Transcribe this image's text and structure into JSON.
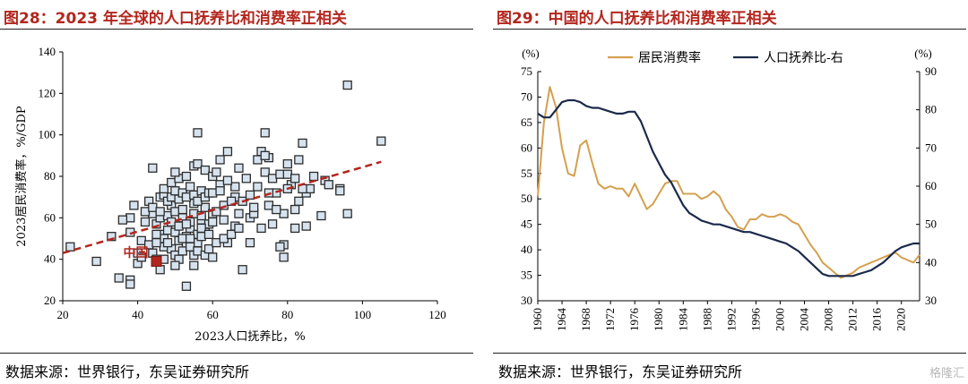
{
  "left": {
    "title": "图28：2023 年全球的人口抚养比和消费率正相关",
    "source": "数据来源：世界银行，东吴证券研究所"
  },
  "right": {
    "title": "图29：中国的人口抚养比和消费率正相关",
    "source": "数据来源：世界银行，东吴证券研究所"
  },
  "watermark": "格隆汇",
  "chart_data": [
    {
      "type": "scatter",
      "xlabel": "2023人口抚养比，%",
      "ylabel": "2023居民消费率，%/GDP",
      "xlim": [
        20,
        120
      ],
      "ylim": [
        20,
        140
      ],
      "xticks": [
        20,
        40,
        60,
        80,
        100,
        120
      ],
      "yticks": [
        20,
        40,
        60,
        80,
        100,
        120,
        140
      ],
      "trendline": {
        "x": [
          20,
          105
        ],
        "y": [
          43,
          87
        ],
        "style": "dashed",
        "color": "#b3261e"
      },
      "highlight": {
        "label": "中国",
        "x": 45,
        "y": 39,
        "color": "#b3261e"
      },
      "points": [
        [
          22,
          46
        ],
        [
          29,
          39
        ],
        [
          33,
          51
        ],
        [
          38,
          30
        ],
        [
          38,
          28
        ],
        [
          35,
          31
        ],
        [
          40,
          38
        ],
        [
          38,
          53
        ],
        [
          41,
          49
        ],
        [
          42,
          58
        ],
        [
          44,
          62
        ],
        [
          45,
          57
        ],
        [
          46,
          60
        ],
        [
          46,
          52
        ],
        [
          47,
          50
        ],
        [
          47,
          46
        ],
        [
          48,
          54
        ],
        [
          48,
          61
        ],
        [
          49,
          58
        ],
        [
          49,
          66
        ],
        [
          50,
          63
        ],
        [
          50,
          53
        ],
        [
          51,
          49
        ],
        [
          51,
          56
        ],
        [
          52,
          60
        ],
        [
          52,
          64
        ],
        [
          53,
          51
        ],
        [
          53,
          47
        ],
        [
          54,
          55
        ],
        [
          54,
          58
        ],
        [
          55,
          62
        ],
        [
          55,
          67
        ],
        [
          56,
          52
        ],
        [
          56,
          48
        ],
        [
          57,
          59
        ],
        [
          57,
          61
        ],
        [
          58,
          65
        ],
        [
          58,
          53
        ],
        [
          59,
          57
        ],
        [
          60,
          62
        ],
        [
          40,
          43
        ],
        [
          41,
          41
        ],
        [
          43,
          47
        ],
        [
          44,
          43
        ],
        [
          45,
          48
        ],
        [
          47,
          40
        ],
        [
          49,
          45
        ],
        [
          50,
          42
        ],
        [
          52,
          44
        ],
        [
          54,
          46
        ],
        [
          55,
          42
        ],
        [
          56,
          44
        ],
        [
          58,
          42
        ],
        [
          59,
          45
        ],
        [
          60,
          41
        ],
        [
          61,
          48
        ],
        [
          42,
          63
        ],
        [
          43,
          68
        ],
        [
          44,
          65
        ],
        [
          46,
          70
        ],
        [
          47,
          71
        ],
        [
          48,
          68
        ],
        [
          49,
          70
        ],
        [
          50,
          73
        ],
        [
          51,
          69
        ],
        [
          52,
          72
        ],
        [
          53,
          70
        ],
        [
          54,
          75
        ],
        [
          55,
          71
        ],
        [
          56,
          68
        ],
        [
          57,
          73
        ],
        [
          58,
          70
        ],
        [
          59,
          72
        ],
        [
          47,
          74
        ],
        [
          49,
          77
        ],
        [
          51,
          79
        ],
        [
          50,
          82
        ],
        [
          53,
          80
        ],
        [
          55,
          85
        ],
        [
          56,
          86
        ],
        [
          58,
          83
        ],
        [
          60,
          80
        ],
        [
          61,
          82
        ],
        [
          62,
          76
        ],
        [
          62,
          88
        ],
        [
          64,
          92
        ],
        [
          66,
          70
        ],
        [
          67,
          84
        ],
        [
          66,
          75
        ],
        [
          68,
          68
        ],
        [
          70,
          71
        ],
        [
          70,
          60
        ],
        [
          71,
          62
        ],
        [
          72,
          75
        ],
        [
          72,
          88
        ],
        [
          73,
          92
        ],
        [
          74,
          82
        ],
        [
          74,
          101
        ],
        [
          75,
          89
        ],
        [
          75,
          66
        ],
        [
          76,
          79
        ],
        [
          77,
          72
        ],
        [
          78,
          81
        ],
        [
          79,
          62
        ],
        [
          79,
          47
        ],
        [
          80,
          81
        ],
        [
          80,
          86
        ],
        [
          81,
          76
        ],
        [
          82,
          55
        ],
        [
          82,
          64
        ],
        [
          83,
          88
        ],
        [
          84,
          96
        ],
        [
          85,
          72
        ],
        [
          85,
          56
        ],
        [
          86,
          74
        ],
        [
          70,
          48
        ],
        [
          68,
          35
        ],
        [
          64,
          48
        ],
        [
          66,
          56
        ],
        [
          56,
          101
        ],
        [
          55,
          37
        ],
        [
          53,
          27
        ],
        [
          51,
          40
        ],
        [
          50,
          37
        ],
        [
          46,
          35
        ],
        [
          45,
          40
        ],
        [
          44,
          84
        ],
        [
          45,
          52
        ],
        [
          57,
          55
        ],
        [
          60,
          72
        ],
        [
          61,
          63
        ],
        [
          62,
          73
        ],
        [
          63,
          66
        ],
        [
          64,
          78
        ],
        [
          63,
          59
        ],
        [
          65,
          68
        ],
        [
          67,
          62
        ],
        [
          69,
          79
        ],
        [
          71,
          65
        ],
        [
          73,
          55
        ],
        [
          75,
          72
        ],
        [
          76,
          57
        ],
        [
          78,
          46
        ],
        [
          80,
          74
        ],
        [
          82,
          79
        ],
        [
          84,
          74
        ],
        [
          87,
          80
        ],
        [
          89,
          61
        ],
        [
          90,
          78
        ],
        [
          91,
          76
        ],
        [
          94,
          74
        ],
        [
          94,
          73
        ],
        [
          96,
          62
        ],
        [
          96,
          124
        ],
        [
          105,
          97
        ],
        [
          38,
          60
        ],
        [
          39,
          66
        ],
        [
          36,
          59
        ],
        [
          48,
          48
        ],
        [
          46,
          63
        ],
        [
          52,
          50
        ],
        [
          54,
          50
        ],
        [
          53,
          57
        ],
        [
          57,
          51
        ],
        [
          59,
          52
        ],
        [
          60,
          58
        ],
        [
          63,
          50
        ],
        [
          65,
          52
        ],
        [
          67,
          55
        ],
        [
          74,
          90
        ],
        [
          77,
          64
        ],
        [
          79,
          41
        ],
        [
          83,
          68
        ]
      ]
    },
    {
      "type": "line",
      "xlim": [
        1960,
        2023
      ],
      "xticks": [
        1960,
        1964,
        1968,
        1972,
        1976,
        1980,
        1984,
        1988,
        1992,
        1996,
        2000,
        2004,
        2008,
        2012,
        2016,
        2020
      ],
      "y_left": {
        "unit": "(%)",
        "lim": [
          30,
          75
        ],
        "ticks": [
          30,
          35,
          40,
          45,
          50,
          55,
          60,
          65,
          70,
          75
        ]
      },
      "y_right": {
        "unit": "(%)",
        "lim": [
          30,
          90
        ],
        "ticks": [
          30,
          40,
          50,
          60,
          70,
          80,
          90
        ]
      },
      "series": [
        {
          "name": "居民消费率",
          "axis": "left",
          "color": "#d4a04f",
          "x": [
            1960,
            1961,
            1962,
            1963,
            1964,
            1965,
            1966,
            1967,
            1968,
            1969,
            1970,
            1971,
            1972,
            1973,
            1974,
            1975,
            1976,
            1977,
            1978,
            1979,
            1980,
            1981,
            1982,
            1983,
            1984,
            1985,
            1986,
            1987,
            1988,
            1989,
            1990,
            1991,
            1992,
            1993,
            1994,
            1995,
            1996,
            1997,
            1998,
            1999,
            2000,
            2001,
            2002,
            2003,
            2004,
            2005,
            2006,
            2007,
            2008,
            2009,
            2010,
            2011,
            2012,
            2013,
            2014,
            2015,
            2016,
            2017,
            2018,
            2019,
            2020,
            2021,
            2022,
            2023
          ],
          "values": [
            50.5,
            65,
            72,
            68,
            60,
            55,
            54.5,
            60.5,
            61.5,
            57,
            53,
            52,
            52.5,
            52,
            52,
            50.5,
            53,
            50.5,
            48,
            49,
            51,
            53,
            53.5,
            53.5,
            51,
            51,
            51,
            50,
            50.5,
            51.5,
            50.5,
            48,
            46.5,
            44.5,
            44,
            46,
            46,
            47,
            46.5,
            46.5,
            47,
            46.5,
            45.5,
            45,
            43,
            41,
            39.5,
            37.5,
            36.5,
            35.5,
            34.5,
            35,
            35.5,
            36.5,
            37,
            37.5,
            38,
            38.5,
            39,
            39.5,
            38.5,
            38,
            37.5,
            39
          ]
        },
        {
          "name": "人口抚养比-右",
          "axis": "right",
          "color": "#1b2a4a",
          "x": [
            1960,
            1961,
            1962,
            1963,
            1964,
            1965,
            1966,
            1967,
            1968,
            1969,
            1970,
            1971,
            1972,
            1973,
            1974,
            1975,
            1976,
            1977,
            1978,
            1979,
            1980,
            1981,
            1982,
            1983,
            1984,
            1985,
            1986,
            1987,
            1988,
            1989,
            1990,
            1991,
            1992,
            1993,
            1994,
            1995,
            1996,
            1997,
            1998,
            1999,
            2000,
            2001,
            2002,
            2003,
            2004,
            2005,
            2006,
            2007,
            2008,
            2009,
            2010,
            2011,
            2012,
            2013,
            2014,
            2015,
            2016,
            2017,
            2018,
            2019,
            2020,
            2021,
            2022,
            2023
          ],
          "values": [
            79,
            78,
            78,
            80,
            82,
            82.5,
            82.5,
            82,
            81,
            80.5,
            80.5,
            80,
            79.5,
            79,
            79,
            79.5,
            79.5,
            77,
            73,
            69,
            66,
            63,
            61,
            58,
            55,
            53,
            52,
            51,
            50.5,
            50,
            50,
            49.5,
            49,
            48.5,
            48,
            48,
            47.5,
            47,
            46.5,
            46,
            45.5,
            45,
            44,
            43,
            41.5,
            40,
            38.5,
            37,
            36.5,
            36.5,
            36.5,
            36.5,
            36.5,
            37,
            37.5,
            38,
            39,
            40,
            41.5,
            43,
            44,
            44.5,
            45,
            45
          ]
        }
      ]
    }
  ]
}
